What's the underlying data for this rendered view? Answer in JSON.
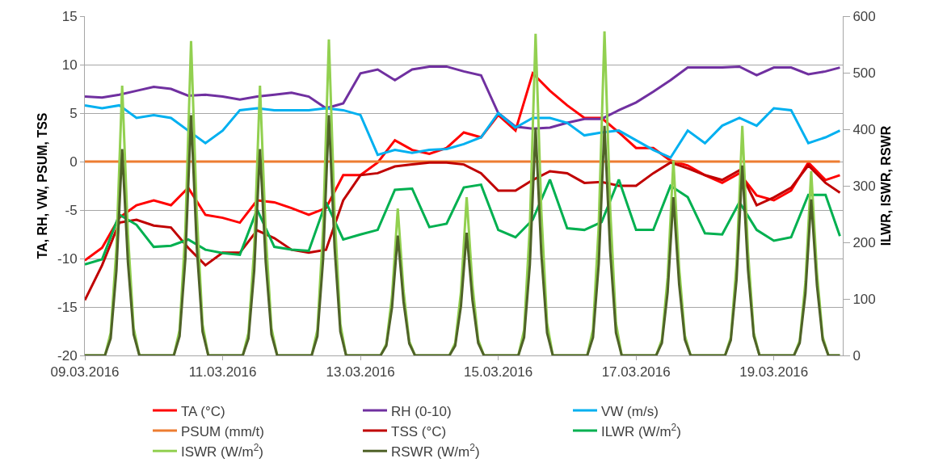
{
  "chart_data": {
    "type": "line",
    "ylabel": "TA, RH, VW, PSUM, TSS",
    "y2label": "ILWR, ISWR, RSWR",
    "x": [
      "2016-03-09T00:00",
      "2016-03-09T06:00",
      "2016-03-09T12:00",
      "2016-03-09T18:00",
      "2016-03-10T00:00",
      "2016-03-10T06:00",
      "2016-03-10T12:00",
      "2016-03-10T18:00",
      "2016-03-11T00:00",
      "2016-03-11T06:00",
      "2016-03-11T12:00",
      "2016-03-11T18:00",
      "2016-03-12T00:00",
      "2016-03-12T06:00",
      "2016-03-12T12:00",
      "2016-03-12T18:00",
      "2016-03-13T00:00",
      "2016-03-13T06:00",
      "2016-03-13T12:00",
      "2016-03-13T18:00",
      "2016-03-14T00:00",
      "2016-03-14T06:00",
      "2016-03-14T12:00",
      "2016-03-14T18:00",
      "2016-03-15T00:00",
      "2016-03-15T06:00",
      "2016-03-15T12:00",
      "2016-03-15T18:00",
      "2016-03-16T00:00",
      "2016-03-16T06:00",
      "2016-03-16T12:00",
      "2016-03-16T18:00",
      "2016-03-17T00:00",
      "2016-03-17T06:00",
      "2016-03-17T12:00",
      "2016-03-17T18:00",
      "2016-03-18T00:00",
      "2016-03-18T06:00",
      "2016-03-18T12:00",
      "2016-03-18T18:00",
      "2016-03-19T00:00",
      "2016-03-19T06:00",
      "2016-03-19T12:00",
      "2016-03-19T18:00",
      "2016-03-19T23:00"
    ],
    "series": [
      {
        "name": "TA (°C)",
        "color": "#ff0000",
        "values": [
          -10.2,
          -8.9,
          -5.8,
          -4.5,
          -4.0,
          -4.5,
          -2.7,
          -5.5,
          -5.8,
          -6.3,
          -4.0,
          -4.2,
          -4.8,
          -5.5,
          -4.8,
          -1.4,
          -1.4,
          -0.1,
          2.2,
          1.2,
          0.8,
          1.4,
          3.0,
          2.5,
          4.8,
          3.2,
          9.1,
          7.3,
          5.8,
          4.5,
          4.5,
          3.0,
          1.4,
          1.4,
          0.1,
          -0.4,
          -1.4,
          -2.2,
          -1.2,
          -3.5,
          -4.0,
          -3.0,
          -0.1,
          -1.9,
          -1.4
        ]
      },
      {
        "name": "RH (0-10)",
        "color": "#7030a0",
        "values": [
          6.7,
          6.6,
          6.9,
          7.3,
          7.7,
          7.5,
          6.8,
          6.9,
          6.7,
          6.4,
          6.7,
          6.9,
          7.1,
          6.7,
          5.5,
          6.0,
          9.1,
          9.5,
          8.4,
          9.5,
          9.8,
          9.8,
          9.3,
          8.9,
          5.0,
          3.6,
          3.4,
          3.5,
          4.0,
          4.4,
          4.4,
          5.3,
          6.1,
          7.2,
          8.4,
          9.7,
          9.7,
          9.7,
          9.8,
          8.9,
          9.7,
          9.7,
          9.0,
          9.3,
          9.7
        ]
      },
      {
        "name": "VW (m/s)",
        "color": "#00b0f0",
        "values": [
          5.8,
          5.5,
          5.8,
          4.5,
          4.8,
          4.5,
          3.2,
          1.9,
          3.2,
          5.3,
          5.5,
          5.3,
          5.3,
          5.3,
          5.5,
          5.3,
          4.8,
          0.7,
          1.2,
          0.9,
          1.2,
          1.3,
          1.8,
          2.5,
          5.0,
          3.5,
          4.5,
          4.5,
          4.0,
          2.7,
          3.0,
          3.2,
          2.2,
          1.2,
          0.4,
          3.2,
          1.9,
          3.7,
          4.5,
          3.7,
          5.5,
          5.3,
          1.9,
          2.5,
          3.2
        ]
      },
      {
        "name": "PSUM (mm/t)",
        "color": "#ed7d31",
        "x": [
          "2016-03-09T00:00",
          "2016-03-19T23:00"
        ],
        "values": [
          0,
          0
        ]
      },
      {
        "name": "TSS (°C)",
        "color": "#c00000",
        "values": [
          -14.3,
          -10.7,
          -6.3,
          -6.0,
          -6.6,
          -6.8,
          -8.9,
          -10.7,
          -9.4,
          -9.4,
          -7.1,
          -7.9,
          -9.1,
          -9.4,
          -9.1,
          -4.0,
          -1.4,
          -1.2,
          -0.5,
          -0.3,
          -0.1,
          -0.1,
          -0.3,
          -1.2,
          -3.0,
          -3.0,
          -1.9,
          -1.0,
          -1.2,
          -2.2,
          -2.1,
          -2.5,
          -2.5,
          -1.2,
          -0.1,
          -0.7,
          -1.4,
          -1.9,
          -0.9,
          -4.5,
          -3.7,
          -2.7,
          -0.4,
          -2.2,
          -3.2
        ]
      },
      {
        "name": "ILWR (W/m$^{2}$)",
        "color": "#00b050",
        "axis": "y2",
        "values": [
          161,
          170,
          249,
          231,
          192,
          194,
          205,
          187,
          181,
          178,
          258,
          192,
          187,
          185,
          271,
          205,
          214,
          222,
          293,
          295,
          227,
          233,
          297,
          302,
          222,
          209,
          240,
          311,
          225,
          222,
          236,
          311,
          222,
          222,
          300,
          280,
          216,
          214,
          271,
          222,
          203,
          209,
          284,
          284,
          211
        ]
      },
      {
        "name": "ISWR (W/m$^{2}$)",
        "color": "#92d050",
        "axis": "y2",
        "x": [
          "2016-03-09T00:00",
          "2016-03-09T07:00",
          "2016-03-09T09:00",
          "2016-03-09T11:00",
          "2016-03-09T13:00",
          "2016-03-09T15:00",
          "2016-03-09T17:00",
          "2016-03-09T19:00",
          "2016-03-10T07:00",
          "2016-03-10T09:00",
          "2016-03-10T11:00",
          "2016-03-10T13:00",
          "2016-03-10T15:00",
          "2016-03-10T17:00",
          "2016-03-10T19:00",
          "2016-03-11T07:00",
          "2016-03-11T09:00",
          "2016-03-11T11:00",
          "2016-03-11T13:00",
          "2016-03-11T15:00",
          "2016-03-11T17:00",
          "2016-03-11T19:00",
          "2016-03-12T07:00",
          "2016-03-12T09:00",
          "2016-03-12T11:00",
          "2016-03-12T13:00",
          "2016-03-12T15:00",
          "2016-03-12T17:00",
          "2016-03-12T19:00",
          "2016-03-13T07:00",
          "2016-03-13T09:00",
          "2016-03-13T11:00",
          "2016-03-13T13:00",
          "2016-03-13T15:00",
          "2016-03-13T17:00",
          "2016-03-13T19:00",
          "2016-03-14T07:00",
          "2016-03-14T09:00",
          "2016-03-14T11:00",
          "2016-03-14T13:00",
          "2016-03-14T15:00",
          "2016-03-14T17:00",
          "2016-03-14T19:00",
          "2016-03-15T07:00",
          "2016-03-15T09:00",
          "2016-03-15T11:00",
          "2016-03-15T13:00",
          "2016-03-15T15:00",
          "2016-03-15T17:00",
          "2016-03-15T19:00",
          "2016-03-16T07:00",
          "2016-03-16T09:00",
          "2016-03-16T11:00",
          "2016-03-16T13:00",
          "2016-03-16T15:00",
          "2016-03-16T17:00",
          "2016-03-16T19:00",
          "2016-03-17T07:00",
          "2016-03-17T09:00",
          "2016-03-17T11:00",
          "2016-03-17T13:00",
          "2016-03-17T15:00",
          "2016-03-17T17:00",
          "2016-03-17T19:00",
          "2016-03-18T07:00",
          "2016-03-18T09:00",
          "2016-03-18T11:00",
          "2016-03-18T13:00",
          "2016-03-18T15:00",
          "2016-03-18T17:00",
          "2016-03-18T19:00",
          "2016-03-19T07:00",
          "2016-03-19T09:00",
          "2016-03-19T11:00",
          "2016-03-19T13:00",
          "2016-03-19T15:00",
          "2016-03-19T17:00",
          "2016-03-19T19:00",
          "2016-03-19T23:00"
        ],
        "values": [
          0,
          0,
          40,
          190,
          477,
          215,
          48,
          0,
          0,
          45,
          220,
          556,
          250,
          55,
          0,
          0,
          40,
          190,
          477,
          215,
          48,
          0,
          0,
          45,
          225,
          559,
          250,
          55,
          0,
          0,
          20,
          105,
          260,
          115,
          25,
          0,
          0,
          22,
          112,
          280,
          125,
          28,
          0,
          0,
          45,
          228,
          569,
          255,
          57,
          0,
          0,
          46,
          230,
          573,
          258,
          57,
          0,
          0,
          28,
          138,
          345,
          155,
          35,
          0,
          0,
          32,
          162,
          406,
          183,
          40,
          0,
          0,
          26,
          130,
          326,
          147,
          33,
          0,
          0
        ]
      },
      {
        "name": "RSWR (W/m$^{2}$)",
        "color": "#4f6228",
        "axis": "y2",
        "x": [
          "2016-03-09T00:00",
          "2016-03-09T07:00",
          "2016-03-09T09:00",
          "2016-03-09T11:00",
          "2016-03-09T13:00",
          "2016-03-09T15:00",
          "2016-03-09T17:00",
          "2016-03-09T19:00",
          "2016-03-10T07:00",
          "2016-03-10T09:00",
          "2016-03-10T11:00",
          "2016-03-10T13:00",
          "2016-03-10T15:00",
          "2016-03-10T17:00",
          "2016-03-10T19:00",
          "2016-03-11T07:00",
          "2016-03-11T09:00",
          "2016-03-11T11:00",
          "2016-03-11T13:00",
          "2016-03-11T15:00",
          "2016-03-11T17:00",
          "2016-03-11T19:00",
          "2016-03-12T07:00",
          "2016-03-12T09:00",
          "2016-03-12T11:00",
          "2016-03-12T13:00",
          "2016-03-12T15:00",
          "2016-03-12T17:00",
          "2016-03-12T19:00",
          "2016-03-13T07:00",
          "2016-03-13T09:00",
          "2016-03-13T11:00",
          "2016-03-13T13:00",
          "2016-03-13T15:00",
          "2016-03-13T17:00",
          "2016-03-13T19:00",
          "2016-03-14T07:00",
          "2016-03-14T09:00",
          "2016-03-14T11:00",
          "2016-03-14T13:00",
          "2016-03-14T15:00",
          "2016-03-14T17:00",
          "2016-03-14T19:00",
          "2016-03-15T07:00",
          "2016-03-15T09:00",
          "2016-03-15T11:00",
          "2016-03-15T13:00",
          "2016-03-15T15:00",
          "2016-03-15T17:00",
          "2016-03-15T19:00",
          "2016-03-16T07:00",
          "2016-03-16T09:00",
          "2016-03-16T11:00",
          "2016-03-16T13:00",
          "2016-03-16T15:00",
          "2016-03-16T17:00",
          "2016-03-16T19:00",
          "2016-03-17T07:00",
          "2016-03-17T09:00",
          "2016-03-17T11:00",
          "2016-03-17T13:00",
          "2016-03-17T15:00",
          "2016-03-17T17:00",
          "2016-03-17T19:00",
          "2016-03-18T07:00",
          "2016-03-18T09:00",
          "2016-03-18T11:00",
          "2016-03-18T13:00",
          "2016-03-18T15:00",
          "2016-03-18T17:00",
          "2016-03-18T19:00",
          "2016-03-19T07:00",
          "2016-03-19T09:00",
          "2016-03-19T11:00",
          "2016-03-19T13:00",
          "2016-03-19T15:00",
          "2016-03-19T17:00",
          "2016-03-19T19:00",
          "2016-03-19T23:00"
        ],
        "values": [
          0,
          0,
          30,
          150,
          365,
          165,
          37,
          0,
          0,
          34,
          170,
          425,
          190,
          42,
          0,
          0,
          30,
          150,
          365,
          165,
          37,
          0,
          0,
          34,
          170,
          425,
          190,
          42,
          0,
          0,
          17,
          85,
          212,
          95,
          21,
          0,
          0,
          17,
          87,
          217,
          98,
          22,
          0,
          0,
          32,
          160,
          402,
          180,
          40,
          0,
          0,
          32,
          162,
          406,
          183,
          40,
          0,
          0,
          22,
          112,
          280,
          126,
          28,
          0,
          0,
          27,
          134,
          336,
          151,
          34,
          0,
          0,
          22,
          110,
          276,
          124,
          28,
          0,
          0
        ]
      }
    ],
    "xlim": [
      "2016-03-09T00:00",
      "2016-03-20T00:00"
    ],
    "xticks": [
      {
        "value": "2016-03-09",
        "label": "09.03.2016"
      },
      {
        "value": "2016-03-11",
        "label": "11.03.2016"
      },
      {
        "value": "2016-03-13",
        "label": "13.03.2016"
      },
      {
        "value": "2016-03-15",
        "label": "15.03.2016"
      },
      {
        "value": "2016-03-17",
        "label": "17.03.2016"
      },
      {
        "value": "2016-03-19",
        "label": "19.03.2016"
      }
    ],
    "ylim": [
      -20,
      15
    ],
    "yticks": [
      -20,
      -15,
      -10,
      -5,
      0,
      5,
      10,
      15
    ],
    "y2lim": [
      0,
      600
    ],
    "y2ticks": [
      0,
      100,
      200,
      300,
      400,
      500,
      600
    ],
    "grid": "y",
    "legend": "bottom"
  }
}
